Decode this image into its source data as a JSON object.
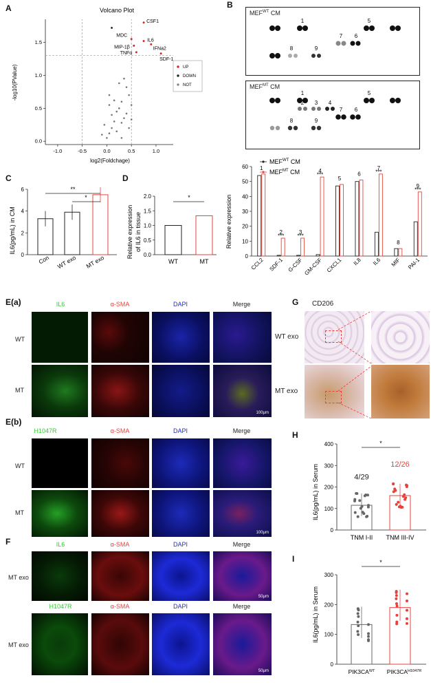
{
  "panels": {
    "A": {
      "label": "A"
    },
    "B": {
      "label": "B"
    },
    "C": {
      "label": "C"
    },
    "D": {
      "label": "D"
    },
    "Ea": {
      "label": "E(a)"
    },
    "Eb": {
      "label": "E(b)"
    },
    "F": {
      "label": "F"
    },
    "G": {
      "label": "G"
    },
    "H": {
      "label": "H"
    },
    "I": {
      "label": "I"
    }
  },
  "volcano": {
    "title": "Volcano Plot",
    "xlabel": "log2(Foldchage)",
    "ylabel": "-log10(PValue)",
    "xticks": [
      "-1.0",
      "-0.5",
      "0.0",
      "0.5",
      "1.0"
    ],
    "yticks": [
      "0.0",
      "0.5",
      "1.0",
      "1.5"
    ],
    "legend": [
      {
        "label": "UP",
        "color": "#d62728"
      },
      {
        "label": "DOWN",
        "color": "#222222"
      },
      {
        "label": "NOT",
        "color": "#888888"
      }
    ],
    "point_labels": [
      "CSF1",
      "MDC",
      "IL6",
      "MIP-1β",
      "IFNa2",
      "TNFα",
      "SDF-1"
    ]
  },
  "blots": {
    "top_label_main": "MEF",
    "top_label_sup": "WT",
    "top_label_tail": " CM",
    "bottom_label_main": "MEF",
    "bottom_label_sup": "MT",
    "bottom_label_tail": " CM",
    "top_numbers": [
      "1",
      "5",
      "7",
      "6",
      "8",
      "9"
    ],
    "bottom_numbers": [
      "1",
      "2",
      "3",
      "4",
      "5",
      "7",
      "6",
      "8",
      "9"
    ]
  },
  "barB": {
    "legend_wt_main": "MEF",
    "legend_wt_sup": "WT",
    "legend_wt_tail": " CM",
    "legend_mt_main": "MEF",
    "legend_mt_sup": "MT",
    "legend_mt_tail": " CM",
    "ylabel": "Relative expression",
    "yticks": [
      "0",
      "10",
      "20",
      "30",
      "40",
      "50",
      "60"
    ],
    "sig": "***"
  },
  "panelC": {
    "ylabel": "IL6(pg/mL) in CM",
    "yticks": [
      "0",
      "2",
      "4",
      "6"
    ],
    "sig1": "**",
    "sig2": "*"
  },
  "panelD": {
    "ylabel_1": "Relative expression",
    "ylabel_2": "of IL6 in tissue",
    "yticks": [
      "0.0",
      "0.5",
      "1.0",
      "1.5",
      "2.0"
    ],
    "sig": "*"
  },
  "ea": {
    "cols": [
      "IL6",
      "α-SMA",
      "DAPI",
      "Merge"
    ],
    "rows": [
      "WT",
      "MT"
    ],
    "scale": "100μm"
  },
  "eb": {
    "cols": [
      "H1047R",
      "α-SMA",
      "DAPI",
      "Merge"
    ],
    "rows": [
      "WT",
      "MT"
    ],
    "scale": "100μm"
  },
  "f": {
    "cols1": [
      "IL6",
      "α-SMA",
      "DAPI",
      "Merge"
    ],
    "cols2": [
      "H1047R",
      "α-SMA",
      "DAPI",
      "Merge"
    ],
    "rows": [
      "MT exo",
      "MT exo"
    ],
    "scale": "50μm"
  },
  "g": {
    "title": "CD206",
    "rows": [
      "WT exo",
      "MT exo"
    ]
  },
  "panelH": {
    "ylabel": "IL6(pg/mL) in Serum",
    "yticks": [
      "0",
      "100",
      "200",
      "300",
      "400"
    ],
    "sig": "*",
    "ratio_left": "4/29",
    "ratio_right": "12/26"
  },
  "panelI": {
    "ylabel": "IL6(pg/mL) in Serum",
    "yticks": [
      "0",
      "100",
      "200",
      "300"
    ],
    "sig": "*",
    "xcat_left_main": "PIK3CA",
    "xcat_left_sup": "WT",
    "xcat_right_main": "PIK3CA",
    "xcat_right_sup": "H1047R"
  },
  "chart_data": [
    {
      "type": "bar",
      "title": "",
      "categories": [
        "CCL2",
        "SDF-1",
        "G-CSF",
        "GM-CSF",
        "CXCL1",
        "IL8",
        "IL6",
        "MIF",
        "PAI-1"
      ],
      "series": [
        {
          "name": "MEFWT CM",
          "values": [
            54,
            0.5,
            0.5,
            1,
            47,
            50,
            16,
            5,
            23
          ],
          "color": "#222222"
        },
        {
          "name": "MEFMT CM",
          "values": [
            55,
            12,
            12,
            53,
            48,
            51,
            55,
            5,
            43
          ],
          "color": "#e8413b"
        }
      ],
      "numbers": [
        "1",
        "2",
        "3",
        "4",
        "5",
        "6",
        "7",
        "8",
        "9"
      ],
      "ylabel": "Relative expression",
      "ylim": [
        0,
        60
      ]
    },
    {
      "type": "bar",
      "categories": [
        "Con",
        "WT exo",
        "MT exo"
      ],
      "values": [
        3.3,
        3.9,
        5.5
      ],
      "ylabel": "IL6(pg/mL) in CM",
      "ylim": [
        0,
        6
      ]
    },
    {
      "type": "bar",
      "categories": [
        "WT",
        "MT"
      ],
      "values": [
        1.0,
        1.33
      ],
      "ylabel": "Relative expression of IL6 in tissue",
      "ylim": [
        0,
        2
      ]
    },
    {
      "type": "bar",
      "categories": [
        "TNM I-II",
        "TNM III-IV"
      ],
      "values": [
        115,
        160
      ],
      "ylabel": "IL6(pg/mL) in Serum",
      "ylim": [
        0,
        400
      ]
    },
    {
      "type": "bar",
      "categories": [
        "PIK3CAWT",
        "PIK3CAH1047R"
      ],
      "values": [
        133,
        190
      ],
      "ylabel": "IL6(pg/mL) in Serum",
      "ylim": [
        0,
        300
      ]
    }
  ],
  "colors": {
    "red": "#e8413b",
    "black": "#222222",
    "green": "#2bd12b",
    "dapi": "#1d2ad6"
  }
}
